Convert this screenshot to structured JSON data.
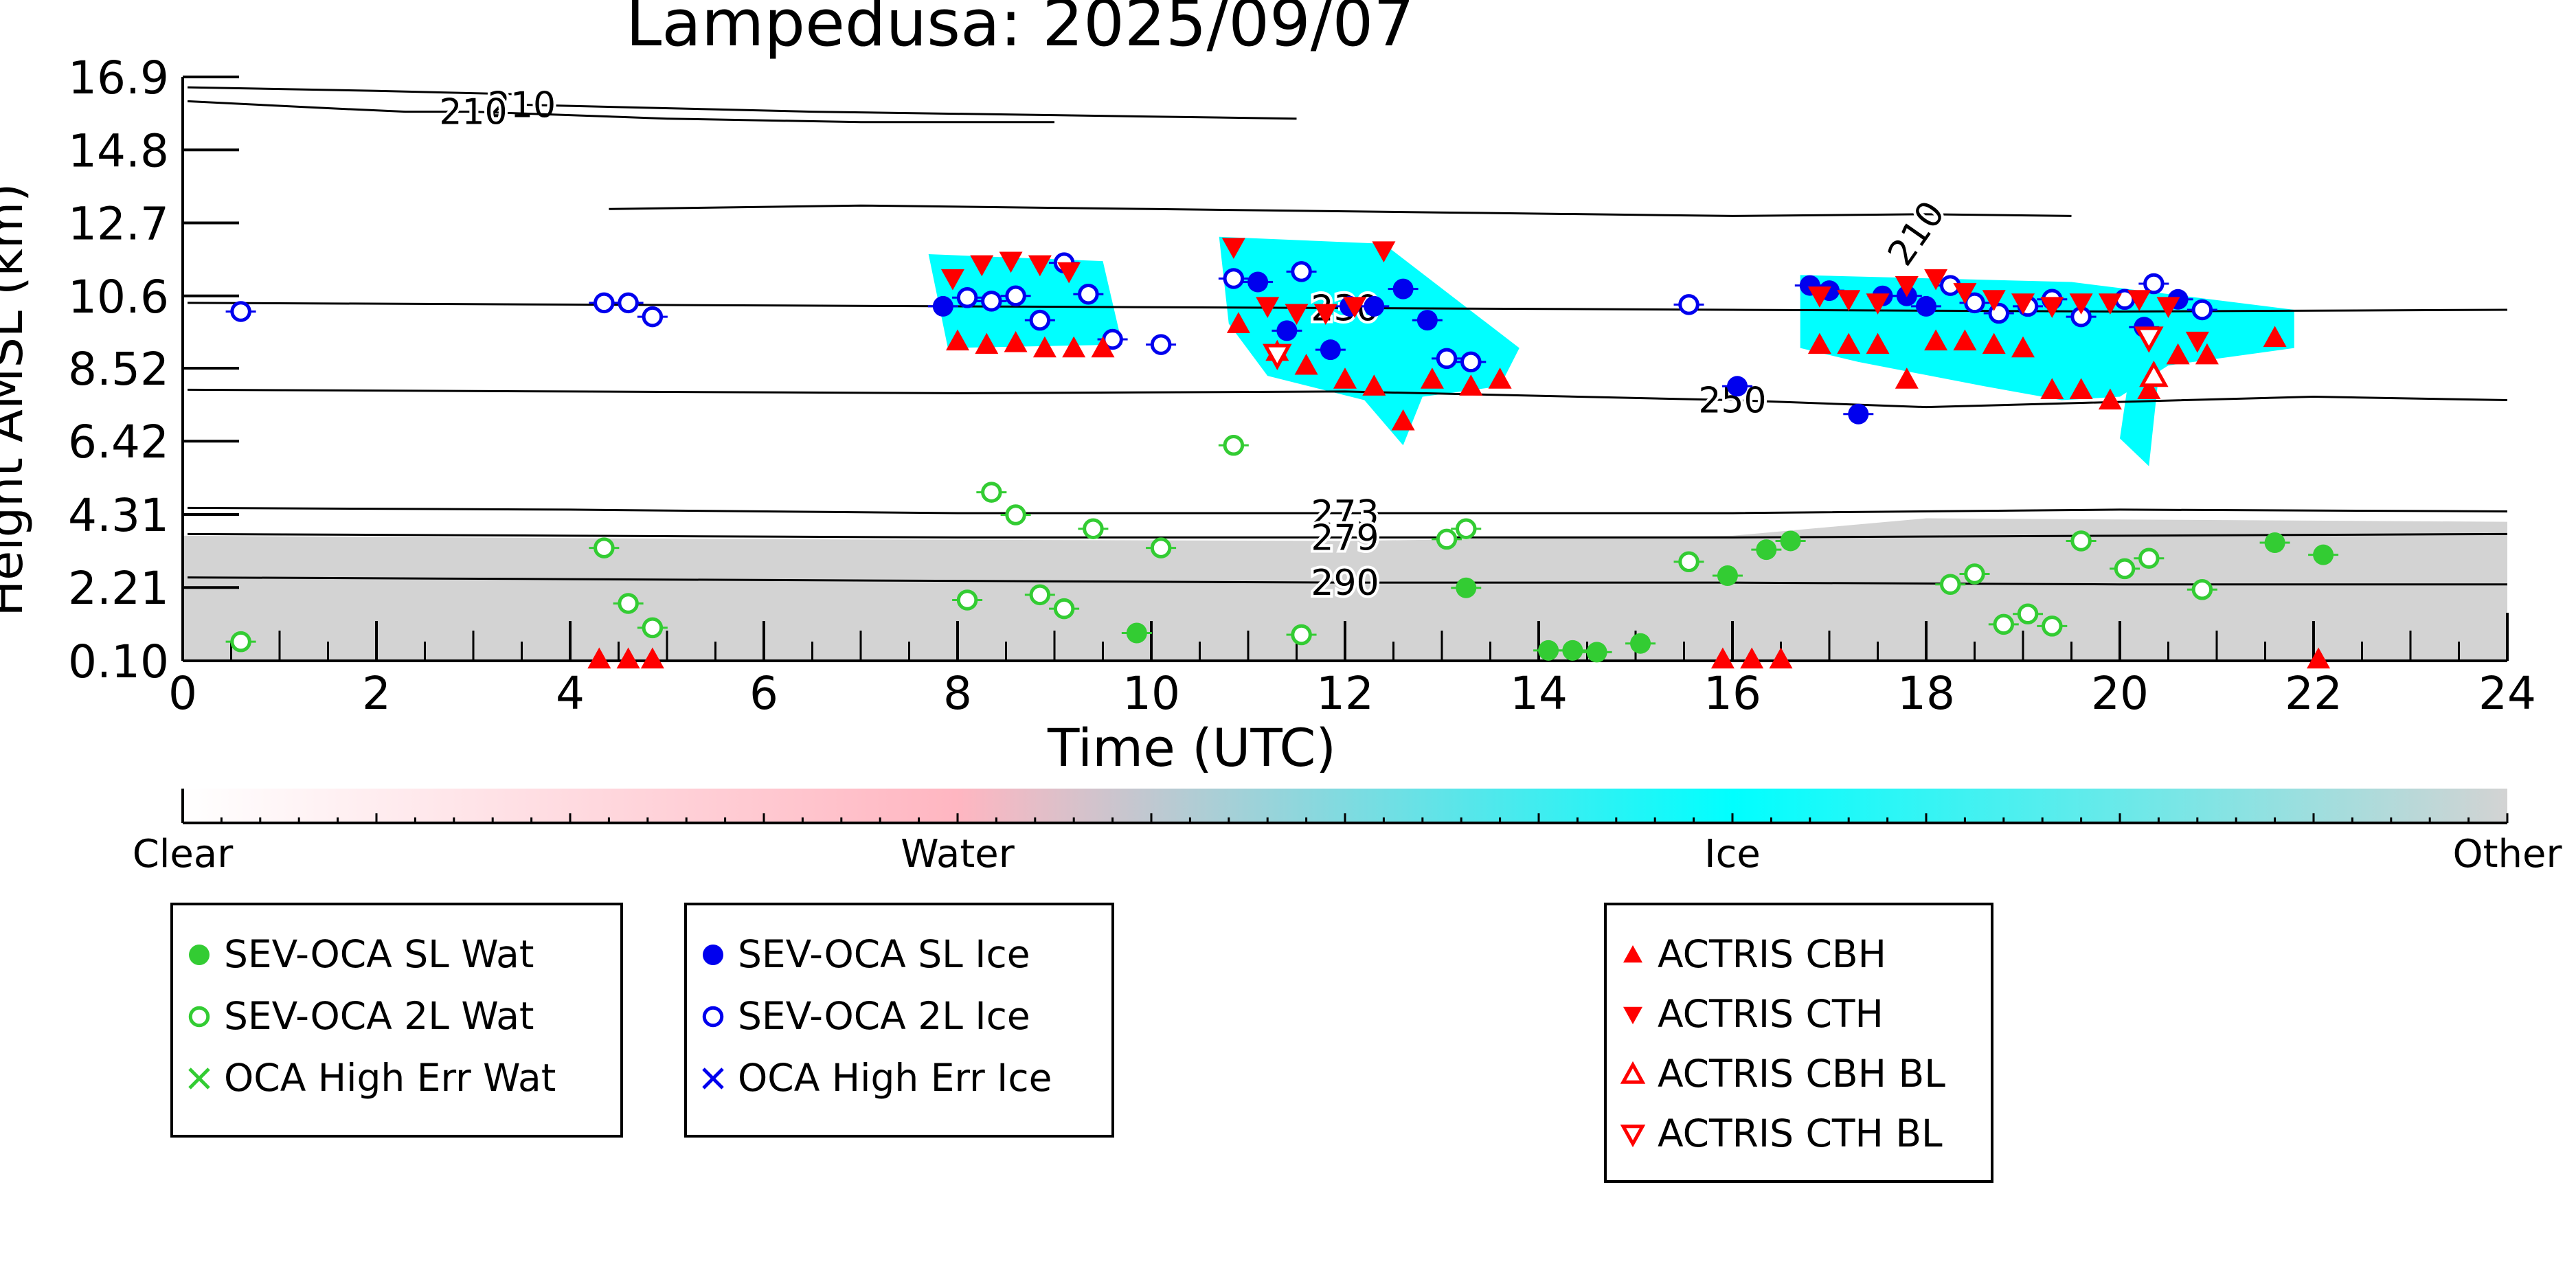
{
  "chart_data": {
    "type": "scatter",
    "title": "Lampedusa: 2025/09/07",
    "xlabel": "Time (UTC)",
    "ylabel": "Height AMSL (km)",
    "xlim": [
      0,
      24
    ],
    "ylim": [
      0.1,
      16.9
    ],
    "xticks": [
      "0",
      "2",
      "4",
      "6",
      "8",
      "10",
      "12",
      "14",
      "16",
      "18",
      "20",
      "22",
      "24"
    ],
    "yticks": [
      "0.10",
      "2.21",
      "4.31",
      "6.42",
      "8.52",
      "10.6",
      "12.7",
      "14.8",
      "16.9"
    ],
    "colorbar": {
      "labels": [
        "Clear",
        "Water",
        "Ice",
        "Other"
      ],
      "colors": [
        "#ffffff",
        "#ffb6c1",
        "#00ffff",
        "#d3d3d3"
      ]
    },
    "contours": [
      {
        "label": "210",
        "points": [
          [
            0.05,
            16.6
          ],
          [
            2,
            16.5
          ],
          [
            3.5,
            16.4
          ],
          [
            3.5,
            16.1
          ],
          [
            6.5,
            15.9
          ],
          [
            9,
            15.8
          ],
          [
            11.5,
            15.7
          ]
        ]
      },
      {
        "label": "210",
        "points": [
          [
            0.05,
            16.2
          ],
          [
            1.5,
            16.0
          ],
          [
            2.3,
            15.9
          ],
          [
            3.0,
            15.9
          ],
          [
            5,
            15.7
          ],
          [
            7,
            15.6
          ],
          [
            9,
            15.6
          ]
        ]
      },
      {
        "label": "210",
        "points": [
          [
            4.4,
            13.1
          ],
          [
            7,
            13.2
          ],
          [
            10,
            13.1
          ],
          [
            13,
            13.0
          ],
          [
            16,
            12.9
          ],
          [
            18,
            12.95
          ],
          [
            19.5,
            12.9
          ]
        ]
      },
      {
        "label": "230",
        "points": [
          [
            0.05,
            10.4
          ],
          [
            4,
            10.35
          ],
          [
            8,
            10.3
          ],
          [
            12,
            10.25
          ],
          [
            16,
            10.2
          ],
          [
            20,
            10.15
          ],
          [
            24,
            10.2
          ]
        ]
      },
      {
        "label": "250",
        "points": [
          [
            0.05,
            7.9
          ],
          [
            4,
            7.85
          ],
          [
            8,
            7.8
          ],
          [
            12,
            7.85
          ],
          [
            16,
            7.6
          ],
          [
            18,
            7.4
          ],
          [
            22,
            7.7
          ],
          [
            24,
            7.6
          ]
        ]
      },
      {
        "label": "273",
        "points": [
          [
            0.05,
            4.5
          ],
          [
            4,
            4.45
          ],
          [
            8,
            4.35
          ],
          [
            12,
            4.35
          ],
          [
            16,
            4.35
          ],
          [
            20,
            4.45
          ],
          [
            24,
            4.4
          ]
        ]
      },
      {
        "label": "279",
        "points": [
          [
            0.05,
            3.75
          ],
          [
            4,
            3.7
          ],
          [
            8,
            3.65
          ],
          [
            12,
            3.65
          ],
          [
            16,
            3.65
          ],
          [
            20,
            3.7
          ],
          [
            24,
            3.75
          ]
        ]
      },
      {
        "label": "290",
        "points": [
          [
            0.05,
            2.5
          ],
          [
            4,
            2.45
          ],
          [
            8,
            2.4
          ],
          [
            12,
            2.35
          ],
          [
            16,
            2.35
          ],
          [
            20,
            2.3
          ],
          [
            24,
            2.3
          ]
        ]
      }
    ],
    "series": [
      {
        "name": "SEV-OCA SL Wat",
        "marker": "circle-filled",
        "color": "#33cc33",
        "points": [
          [
            9.85,
            0.9
          ],
          [
            13.25,
            2.2
          ],
          [
            14.1,
            0.4
          ],
          [
            14.35,
            0.4
          ],
          [
            14.6,
            0.35
          ],
          [
            15.05,
            0.6
          ],
          [
            15.95,
            2.55
          ],
          [
            16.35,
            3.3
          ],
          [
            16.6,
            3.55
          ],
          [
            21.6,
            3.5
          ],
          [
            22.1,
            3.15
          ]
        ]
      },
      {
        "name": "SEV-OCA 2L Wat",
        "marker": "circle-open",
        "color": "#33cc33",
        "points": [
          [
            0.6,
            0.65
          ],
          [
            4.35,
            3.35
          ],
          [
            4.6,
            1.75
          ],
          [
            4.85,
            1.05
          ],
          [
            8.1,
            1.85
          ],
          [
            8.35,
            4.95
          ],
          [
            8.6,
            4.3
          ],
          [
            8.85,
            2.0
          ],
          [
            9.1,
            1.6
          ],
          [
            9.4,
            3.9
          ],
          [
            10.1,
            3.35
          ],
          [
            10.85,
            6.3
          ],
          [
            11.55,
            0.85
          ],
          [
            13.05,
            3.6
          ],
          [
            13.25,
            3.9
          ],
          [
            15.55,
            2.95
          ],
          [
            18.25,
            2.3
          ],
          [
            18.5,
            2.6
          ],
          [
            18.8,
            1.15
          ],
          [
            19.05,
            1.45
          ],
          [
            19.3,
            1.1
          ],
          [
            19.6,
            3.55
          ],
          [
            20.05,
            2.75
          ],
          [
            20.3,
            3.05
          ],
          [
            20.85,
            2.15
          ]
        ]
      },
      {
        "name": "OCA High Err Wat",
        "marker": "x",
        "color": "#33cc33",
        "points": []
      },
      {
        "name": "SEV-OCA SL Ice",
        "marker": "circle-filled",
        "color": "#0000ee",
        "points": [
          [
            7.85,
            10.3
          ],
          [
            11.1,
            11.0
          ],
          [
            11.4,
            9.6
          ],
          [
            11.85,
            9.05
          ],
          [
            12.05,
            10.3
          ],
          [
            12.3,
            10.3
          ],
          [
            12.6,
            10.8
          ],
          [
            12.85,
            9.9
          ],
          [
            16.05,
            8.0
          ],
          [
            17.3,
            7.2
          ],
          [
            16.8,
            10.9
          ],
          [
            17.0,
            10.75
          ],
          [
            17.55,
            10.6
          ],
          [
            17.8,
            10.6
          ],
          [
            18.0,
            10.3
          ],
          [
            20.25,
            9.7
          ],
          [
            20.6,
            10.5
          ]
        ]
      },
      {
        "name": "SEV-OCA 2L Ice",
        "marker": "circle-open",
        "color": "#0000ee",
        "points": [
          [
            0.6,
            10.15
          ],
          [
            4.35,
            10.4
          ],
          [
            4.6,
            10.4
          ],
          [
            4.85,
            10.0
          ],
          [
            8.1,
            10.55
          ],
          [
            8.35,
            10.45
          ],
          [
            8.6,
            10.6
          ],
          [
            8.85,
            9.9
          ],
          [
            9.1,
            11.55
          ],
          [
            9.35,
            10.65
          ],
          [
            9.6,
            9.35
          ],
          [
            10.1,
            9.2
          ],
          [
            10.85,
            11.1
          ],
          [
            11.55,
            11.3
          ],
          [
            13.05,
            8.8
          ],
          [
            13.3,
            8.7
          ],
          [
            15.55,
            10.35
          ],
          [
            18.25,
            10.9
          ],
          [
            18.5,
            10.4
          ],
          [
            18.75,
            10.1
          ],
          [
            19.05,
            10.3
          ],
          [
            19.3,
            10.5
          ],
          [
            19.6,
            10.0
          ],
          [
            20.05,
            10.5
          ],
          [
            20.35,
            10.95
          ],
          [
            20.85,
            10.2
          ]
        ]
      },
      {
        "name": "OCA High Err Ice",
        "marker": "x",
        "color": "#0000ee",
        "points": []
      },
      {
        "name": "ACTRIS CBH",
        "marker": "triangle-up-filled",
        "color": "#ff0000",
        "points": [
          [
            8.0,
            9.3
          ],
          [
            8.3,
            9.2
          ],
          [
            8.6,
            9.25
          ],
          [
            8.9,
            9.1
          ],
          [
            9.2,
            9.1
          ],
          [
            9.5,
            9.1
          ],
          [
            10.9,
            9.8
          ],
          [
            11.3,
            9.0
          ],
          [
            11.6,
            8.6
          ],
          [
            12.0,
            8.2
          ],
          [
            12.3,
            8.0
          ],
          [
            12.6,
            7.0
          ],
          [
            12.9,
            8.2
          ],
          [
            13.3,
            8.0
          ],
          [
            13.6,
            8.2
          ],
          [
            16.9,
            9.2
          ],
          [
            17.2,
            9.2
          ],
          [
            17.5,
            9.2
          ],
          [
            17.8,
            8.2
          ],
          [
            18.1,
            9.3
          ],
          [
            18.4,
            9.3
          ],
          [
            18.7,
            9.2
          ],
          [
            19.0,
            9.1
          ],
          [
            19.3,
            7.9
          ],
          [
            19.6,
            7.9
          ],
          [
            19.9,
            7.6
          ],
          [
            20.3,
            7.9
          ],
          [
            20.6,
            8.9
          ],
          [
            20.9,
            8.9
          ],
          [
            21.6,
            9.4
          ],
          [
            4.3,
            0.15
          ],
          [
            4.6,
            0.15
          ],
          [
            4.85,
            0.15
          ],
          [
            15.9,
            0.15
          ],
          [
            16.2,
            0.15
          ],
          [
            16.5,
            0.15
          ],
          [
            22.05,
            0.15
          ]
        ]
      },
      {
        "name": "ACTRIS CTH",
        "marker": "triangle-down-filled",
        "color": "#ff0000",
        "points": [
          [
            7.95,
            11.1
          ],
          [
            8.25,
            11.5
          ],
          [
            8.55,
            11.6
          ],
          [
            8.85,
            11.5
          ],
          [
            9.15,
            11.3
          ],
          [
            10.85,
            12.0
          ],
          [
            11.2,
            10.3
          ],
          [
            11.5,
            10.1
          ],
          [
            11.8,
            10.1
          ],
          [
            12.1,
            10.3
          ],
          [
            12.4,
            11.9
          ],
          [
            16.9,
            10.6
          ],
          [
            17.2,
            10.5
          ],
          [
            17.5,
            10.4
          ],
          [
            17.8,
            10.9
          ],
          [
            18.1,
            11.1
          ],
          [
            18.4,
            10.7
          ],
          [
            18.7,
            10.5
          ],
          [
            19.0,
            10.4
          ],
          [
            19.3,
            10.3
          ],
          [
            19.6,
            10.4
          ],
          [
            19.9,
            10.4
          ],
          [
            20.2,
            10.5
          ],
          [
            20.5,
            10.3
          ],
          [
            20.8,
            9.3
          ]
        ]
      },
      {
        "name": "ACTRIS CBH BL",
        "marker": "triangle-up-open",
        "color": "#ff0000",
        "points": [
          [
            20.35,
            8.3
          ]
        ]
      },
      {
        "name": "ACTRIS CTH BL",
        "marker": "triangle-down-open",
        "color": "#ff0000",
        "points": [
          [
            11.3,
            8.9
          ],
          [
            20.3,
            9.4
          ]
        ]
      }
    ],
    "legends": [
      [
        "SEV-OCA SL Wat",
        "SEV-OCA 2L Wat",
        "OCA High Err Wat"
      ],
      [
        "SEV-OCA SL Ice",
        "SEV-OCA 2L Ice",
        "OCA High Err Ice"
      ],
      [
        "ACTRIS CBH",
        "ACTRIS CTH",
        "ACTRIS CBH BL",
        "ACTRIS CTH BL"
      ]
    ]
  }
}
